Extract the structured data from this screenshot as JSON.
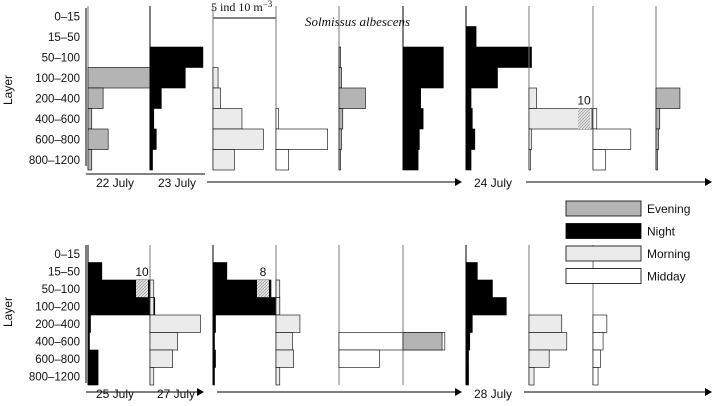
{
  "chart_data": {
    "type": "bar",
    "subtype": "horizontal kite diagram, depth profile of abundance",
    "title": "Solmissus albescens",
    "ylabel": "Layer",
    "scale_bar": {
      "label": "5 ind 10 m",
      "exponent": "−3",
      "value": 5,
      "units": "ind 10 m-3"
    },
    "layers": [
      "0–15",
      "15–50",
      "50–100",
      "100–200",
      "200–400",
      "400–600",
      "600–800",
      "800–1200"
    ],
    "legend": [
      {
        "key": "evening",
        "name": "Evening",
        "color": "#b4b4b4"
      },
      {
        "key": "night",
        "name": "Night",
        "color": "#000000"
      },
      {
        "key": "morning",
        "name": "Morning",
        "color": "#ebebeb"
      },
      {
        "key": "midday",
        "name": "Midday",
        "color": "#ffffff"
      }
    ],
    "panels": [
      {
        "row": 1,
        "dates": [
          "22 July",
          "23 July",
          "24 July"
        ],
        "profiles": [
          {
            "period": "evening",
            "values": [
              0,
              0,
              0,
              5.5,
              1.2,
              0.3,
              1.6,
              0.3
            ]
          },
          {
            "period": "night",
            "values": [
              0,
              0,
              4.2,
              2.8,
              0.9,
              0.3,
              0.5,
              0.2
            ]
          },
          {
            "period": "morning",
            "values": [
              0,
              0,
              0,
              0.4,
              0.6,
              2.3,
              4.0,
              1.7
            ]
          },
          {
            "period": "midday",
            "values": [
              0,
              0,
              0,
              0,
              0,
              0.2,
              4.1,
              1.0
            ]
          },
          {
            "period": "evening",
            "values": [
              0,
              0,
              0.1,
              0.2,
              2.1,
              0.3,
              0.2,
              0.1
            ]
          },
          {
            "period": "night",
            "values": [
              0,
              0,
              3.2,
              3.2,
              1.4,
              1.6,
              1.3,
              1.2
            ]
          },
          {
            "period": "night",
            "values": [
              0,
              0.8,
              5.2,
              2.5,
              0.4,
              0.5,
              0.7,
              0.4
            ]
          },
          {
            "period": "morning",
            "values": [
              0,
              0,
              0,
              0,
              0.6,
              10,
              0.2,
              0.1
            ]
          },
          {
            "period": "midday",
            "values": [
              0,
              0,
              0,
              0,
              0,
              0.3,
              3.0,
              1.0
            ]
          },
          {
            "period": "evening",
            "values": [
              0,
              0,
              0,
              0,
              1.9,
              0.3,
              0.2,
              0.1
            ]
          }
        ]
      },
      {
        "row": 2,
        "dates": [
          "25 July",
          "27 July",
          "28 July"
        ],
        "profiles": [
          {
            "period": "night",
            "values": [
              0,
              1.1,
              10,
              5.3,
              0.2,
              0.1,
              0.8,
              0.8
            ]
          },
          {
            "period": "morning",
            "values": [
              0,
              0,
              0.3,
              0.3,
              4.0,
              2.2,
              1.8,
              0.3
            ]
          },
          {
            "period": "night",
            "values": [
              0,
              1.1,
              8,
              5.3,
              0.2,
              0.1,
              0.2,
              0.1
            ]
          },
          {
            "period": "morning",
            "values": [
              0,
              0,
              0.3,
              0.3,
              1.9,
              1.3,
              1.4,
              0.3
            ]
          },
          {
            "period": "midday",
            "values": [
              0,
              0,
              0,
              0,
              0,
              8.4,
              3.2,
              0
            ]
          },
          {
            "period": "evening",
            "values": [
              0,
              0,
              0,
              0,
              0,
              3.1,
              0,
              0
            ]
          },
          {
            "period": "night",
            "values": [
              0,
              0.9,
              2.1,
              3.2,
              0.5,
              0.3,
              0.2,
              0.2
            ]
          },
          {
            "period": "morning",
            "values": [
              0,
              0,
              0,
              0,
              2.6,
              3.0,
              1.6,
              0.4
            ]
          },
          {
            "period": "midday",
            "values": [
              0,
              0,
              0,
              0,
              1.1,
              0.8,
              0.6,
              0.4
            ]
          }
        ]
      }
    ],
    "annotations": [
      {
        "row": 1,
        "profile": 7,
        "layer": "400–600",
        "text": "10"
      },
      {
        "row": 2,
        "profile": 0,
        "layer": "50–100",
        "text": "10"
      },
      {
        "row": 2,
        "profile": 2,
        "layer": "50–100",
        "text": "8"
      }
    ]
  }
}
